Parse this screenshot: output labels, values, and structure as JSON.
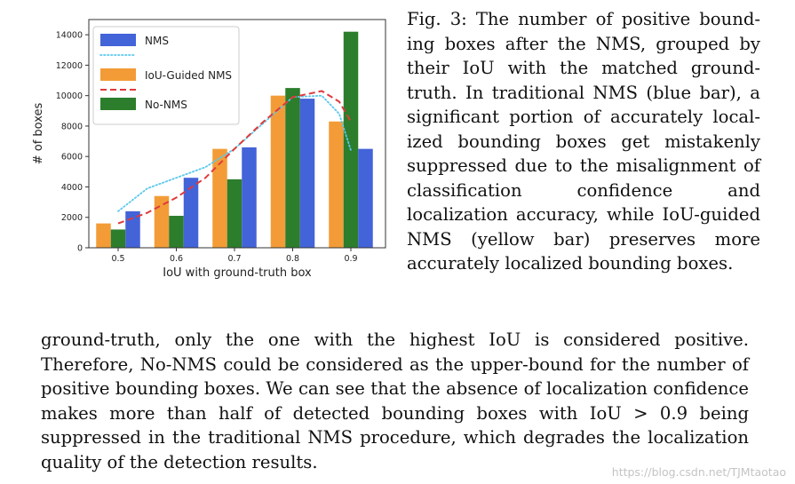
{
  "figure": {
    "caption": "Fig. 3: The number of positive bound­ing boxes after the NMS, grouped by their IoU with the matched ground­truth. In traditional NMS (blue bar), a significant portion of accurately local­ized bounding boxes get mistakenly sup­pressed due to the misalignment of clas­sification confidence and localization ac­curacy, while IoU-guided NMS (yellow bar) preserves more accurately localized bounding boxes."
  },
  "chart_data": {
    "type": "bar",
    "xlabel": "IoU with ground-truth box",
    "ylabel": "# of boxes",
    "categories": [
      "0.5",
      "0.6",
      "0.7",
      "0.8",
      "0.9"
    ],
    "ylim": [
      0,
      15000
    ],
    "yticks": [
      0,
      2000,
      4000,
      6000,
      8000,
      10000,
      12000,
      14000
    ],
    "grid": false,
    "legend_position": "top-left",
    "series": [
      {
        "name": "IoU-Guided NMS",
        "color": "#f39c37",
        "values": [
          1600,
          3400,
          6500,
          10000,
          8300
        ]
      },
      {
        "name": "No-NMS",
        "color": "#2c7d2c",
        "values": [
          1200,
          2100,
          4500,
          10500,
          14200
        ]
      },
      {
        "name": "NMS",
        "color": "#4363d8",
        "values": [
          2400,
          4600,
          6600,
          9800,
          6500
        ]
      }
    ],
    "curves": [
      {
        "name": "NMS",
        "style": "dotted",
        "color": "#5bc8ee",
        "x": [
          0.5,
          0.55,
          0.6,
          0.65,
          0.7,
          0.75,
          0.8,
          0.85,
          0.88,
          0.9
        ],
        "y": [
          2400,
          3900,
          4600,
          5300,
          6500,
          8200,
          9900,
          10000,
          8800,
          6400
        ]
      },
      {
        "name": "IoU-Guided NMS",
        "style": "dashed",
        "color": "#e03a3a",
        "x": [
          0.5,
          0.55,
          0.6,
          0.65,
          0.7,
          0.75,
          0.8,
          0.85,
          0.88,
          0.9
        ],
        "y": [
          1600,
          2300,
          3300,
          4600,
          6500,
          8300,
          9900,
          10300,
          9600,
          8300
        ]
      }
    ],
    "legend": [
      {
        "label": "NMS",
        "patch": "#4363d8",
        "line": "#5bc8ee",
        "line_style": "dotted"
      },
      {
        "label": "IoU-Guided NMS",
        "patch": "#f39c37",
        "line": "#e03a3a",
        "line_style": "dashed"
      },
      {
        "label": "No-NMS",
        "patch": "#2c7d2c"
      }
    ]
  },
  "body": {
    "paragraph": "ground-truth, only the one with the highest IoU is considered positive. Therefore, No-NMS could be considered as the upper-bound for the number of positive bounding boxes. We can see that the absence of localization confidence makes more than half of detected bounding boxes with IoU > 0.9 being suppressed in the traditional NMS procedure, which degrades the localization quality of the detection results."
  },
  "watermark": "https://blog.csdn.net/TJMtaotao"
}
